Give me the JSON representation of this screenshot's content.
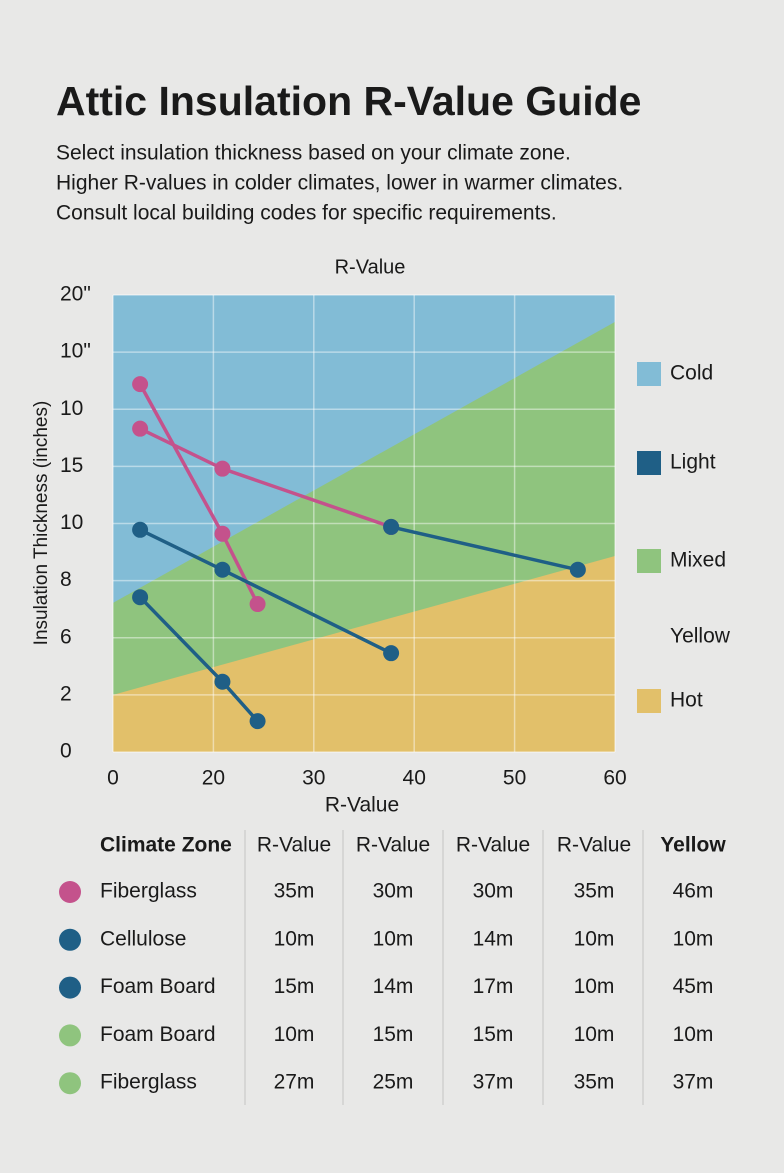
{
  "chart_data": {
    "type": "line",
    "title": "Attic Insulation R-Value Guide",
    "subtitle": [
      "Select insulation thickness based on your climate zone.",
      "Higher R-values in colder climates, lower in warmer climates.",
      "Consult local building codes for specific requirements."
    ],
    "top_label": "R-Value",
    "x_label": "R-Value",
    "y_label": "Insulation Thickness (inches)",
    "xlim": [
      0,
      5
    ],
    "ylim": [
      0,
      8
    ],
    "xticks": [
      0,
      {
        "value": 1,
        "label": "20"
      },
      {
        "value": 2,
        "label": "30"
      },
      {
        "value": 3,
        "label": "40"
      },
      {
        "value": 4,
        "label": "50"
      },
      {
        "value": 5,
        "label": "60"
      }
    ],
    "yticks": [
      0,
      {
        "value": 1,
        "label": "2"
      },
      {
        "value": 2,
        "label": "6"
      },
      {
        "value": 3,
        "label": "8"
      },
      {
        "value": 4,
        "label": "10"
      },
      {
        "value": 5,
        "label": "15"
      },
      {
        "value": 6,
        "label": "10"
      },
      {
        "value": 7,
        "label": "10\""
      },
      {
        "value": 8,
        "label": "20\""
      }
    ],
    "grid": true,
    "background_color": "#82bcd6",
    "bands": [
      {
        "color": "#8fc47e",
        "y_left": 2.61,
        "y_right": 7.53
      },
      {
        "color": "#e2c06a",
        "y_left": 1.0,
        "y_right": 3.43
      }
    ],
    "series": [
      {
        "color": "#c4528c",
        "x": [
          0.27,
          1.09,
          1.44
        ],
        "values": [
          6.44,
          3.82,
          2.59
        ]
      },
      {
        "color": "#c4528c",
        "x": [
          0.27,
          1.09,
          2.77
        ],
        "values": [
          5.66,
          4.96,
          3.94
        ]
      },
      {
        "color": "#1f5f86",
        "x": [
          2.77,
          4.63
        ],
        "values": [
          3.94,
          3.19
        ]
      },
      {
        "color": "#1f5f86",
        "x": [
          0.27,
          1.09,
          2.77
        ],
        "values": [
          3.89,
          3.19,
          1.73
        ]
      },
      {
        "color": "#1f5f86",
        "x": [
          0.27,
          1.09,
          1.44
        ],
        "values": [
          2.71,
          1.23,
          0.54
        ]
      }
    ],
    "legend": [
      {
        "label": "Cold",
        "color": "#82bcd6"
      },
      {
        "label": "Light",
        "color": "#1f5f86"
      },
      {
        "label": "Mixed",
        "color": "#8fc47e"
      },
      {
        "label": "Yellow",
        "color": null
      },
      {
        "label": "Hot",
        "color": "#e2c06a"
      }
    ]
  },
  "table": {
    "header": [
      "Climate Zone",
      "R-Value",
      "R-Value",
      "R-Value",
      "R-Value",
      "Yellow"
    ],
    "rows": [
      {
        "color": "#c4528c",
        "name": "Fiberglass",
        "cells": [
          "35m",
          "30m",
          "30m",
          "35m",
          "46m"
        ]
      },
      {
        "color": "#1f5f86",
        "name": "Cellulose",
        "cells": [
          "10m",
          "10m",
          "14m",
          "10m",
          "10m"
        ]
      },
      {
        "color": "#1f5f86",
        "name": "Foam Board",
        "cells": [
          "15m",
          "14m",
          "17m",
          "10m",
          "45m"
        ]
      },
      {
        "color": "#8fc47e",
        "name": "Foam Board",
        "cells": [
          "10m",
          "15m",
          "15m",
          "10m",
          "10m"
        ]
      },
      {
        "color": "#8fc47e",
        "name": "Fiberglass",
        "cells": [
          "27m",
          "25m",
          "37m",
          "35m",
          "37m"
        ]
      }
    ]
  }
}
